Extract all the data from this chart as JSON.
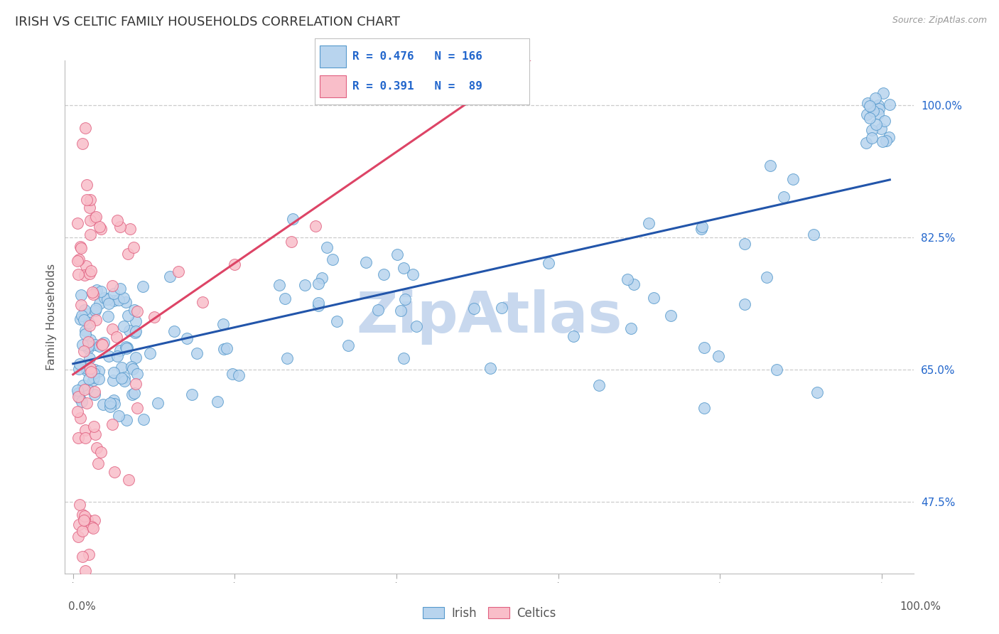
{
  "title": "IRISH VS CELTIC FAMILY HOUSEHOLDS CORRELATION CHART",
  "source": "Source: ZipAtlas.com",
  "ylabel": "Family Households",
  "y_tick_labels": [
    "47.5%",
    "65.0%",
    "82.5%",
    "100.0%"
  ],
  "y_tick_values": [
    0.475,
    0.65,
    0.825,
    1.0
  ],
  "R_irish": 0.476,
  "N_irish": 166,
  "R_celtics": 0.391,
  "N_celtics": 89,
  "irish_color": "#B8D4EE",
  "celtics_color": "#F9BEC9",
  "irish_edge_color": "#5599CC",
  "celtics_edge_color": "#E06080",
  "irish_line_color": "#2255AA",
  "celtics_line_color": "#DD4466",
  "watermark": "ZipAtlas",
  "watermark_color": "#C8D8EE",
  "background_color": "#FFFFFF",
  "xlim": [
    -0.01,
    1.04
  ],
  "ylim": [
    0.38,
    1.06
  ],
  "title_fontsize": 13,
  "source_fontsize": 9
}
